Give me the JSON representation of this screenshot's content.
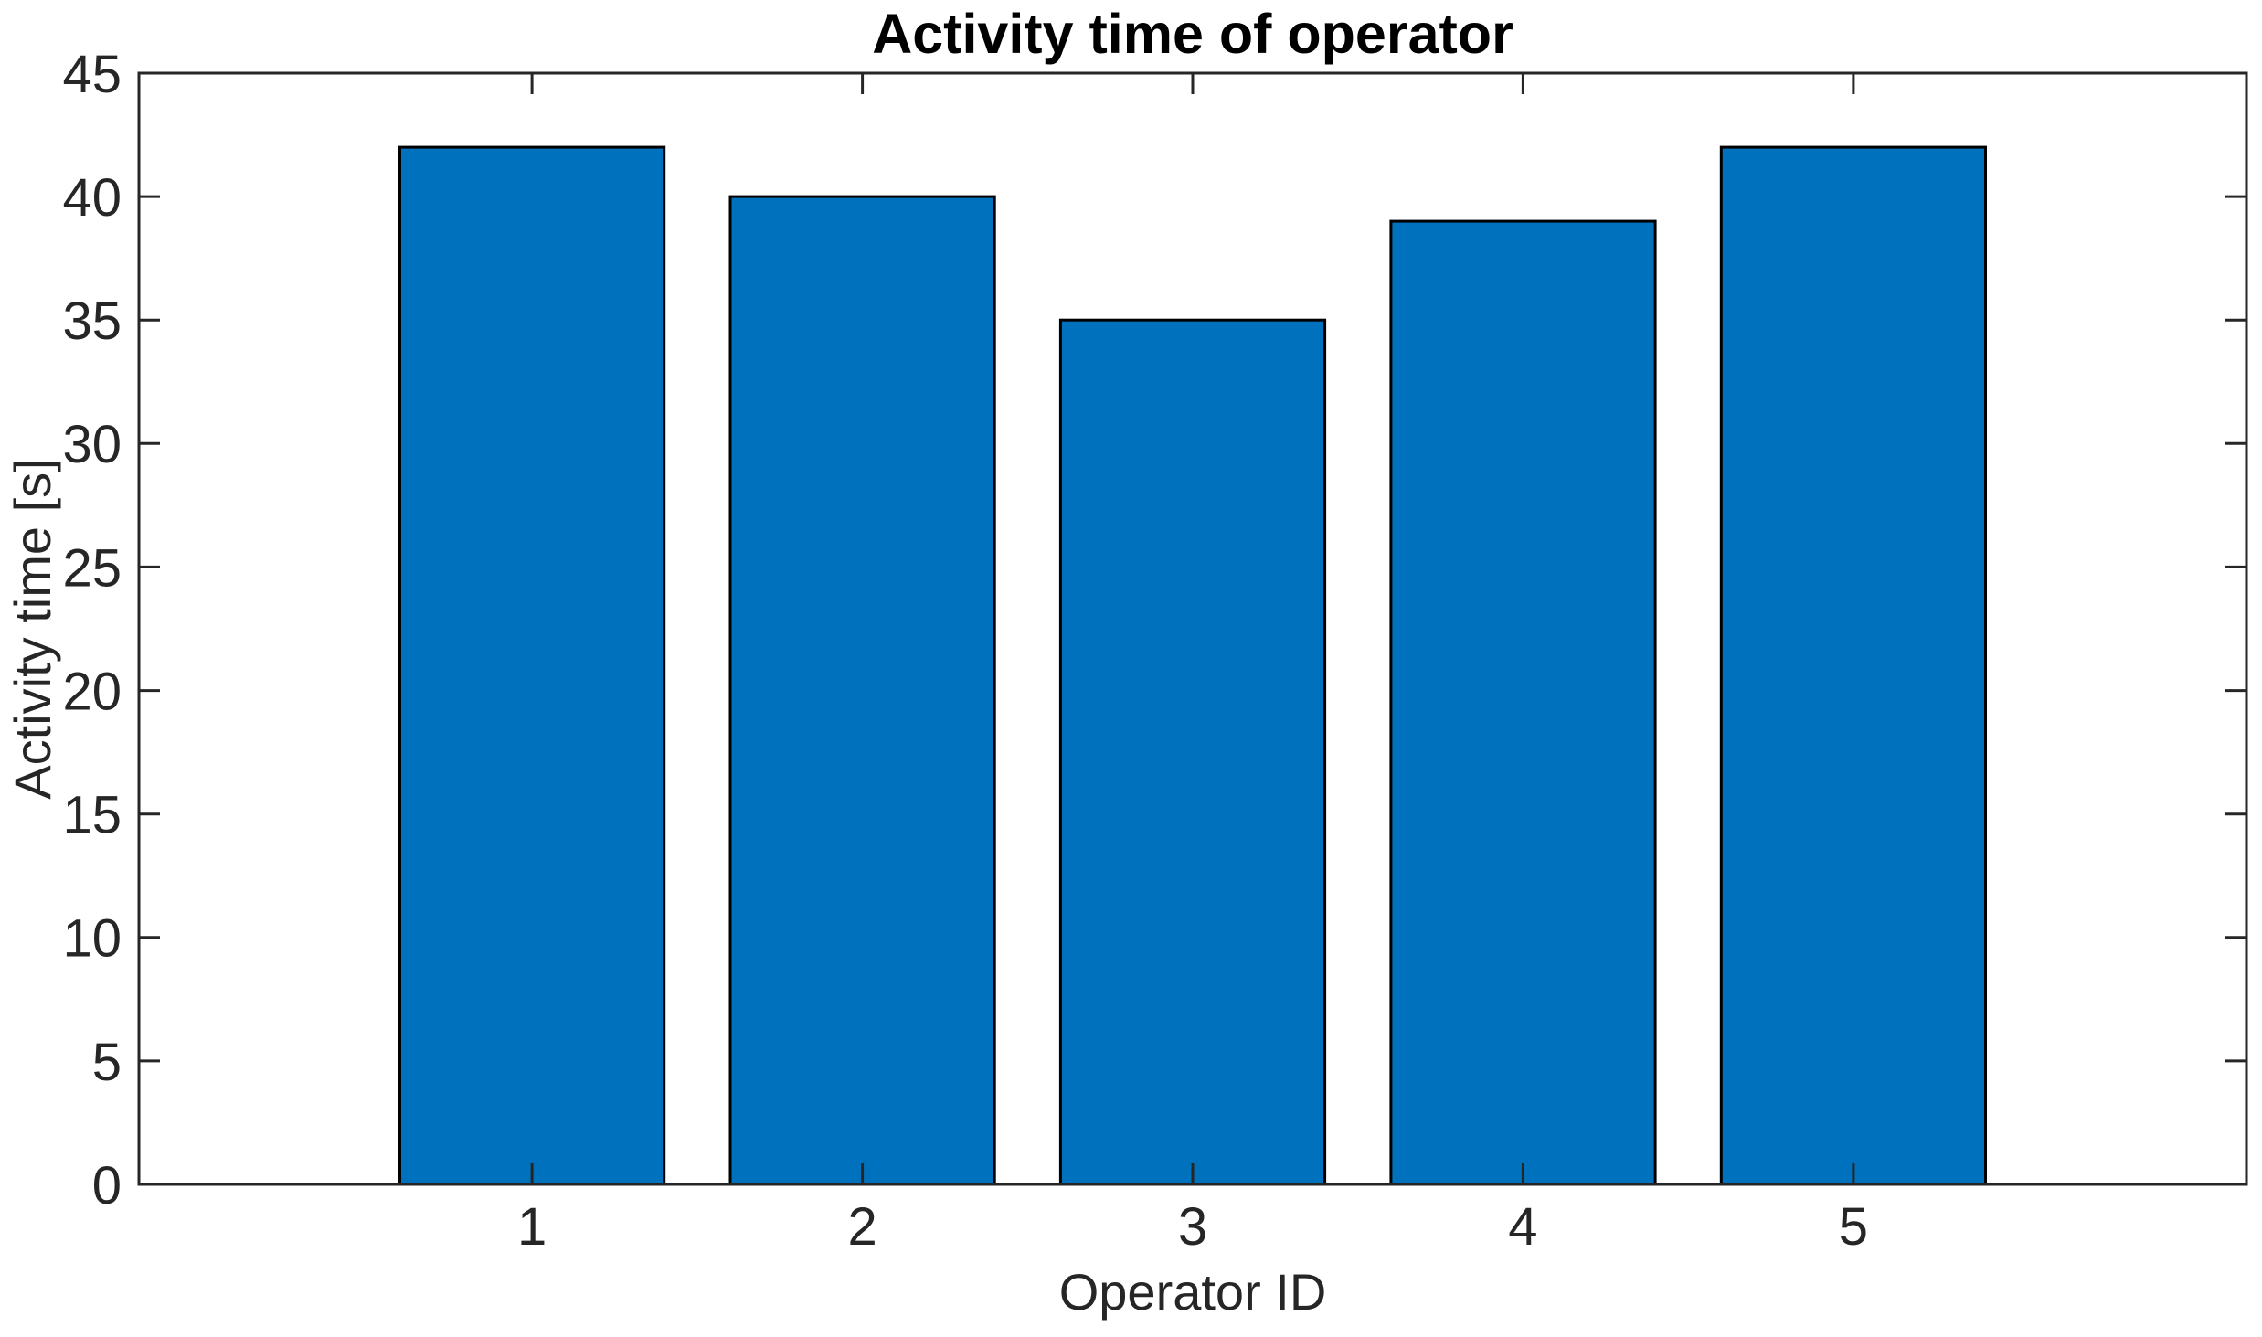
{
  "chart_data": {
    "type": "bar",
    "title": "Activity time of operator",
    "xlabel": "Operator ID",
    "ylabel": "Activity time [s]",
    "categories": [
      "1",
      "2",
      "3",
      "4",
      "5"
    ],
    "values": [
      42,
      40,
      35,
      39,
      42
    ],
    "series_name": "Activity time",
    "ylim": [
      0,
      45
    ],
    "yticks": [
      0,
      5,
      10,
      15,
      20,
      25,
      30,
      35,
      40,
      45
    ],
    "xlim": [
      -0.19,
      6.19
    ],
    "x_positions": [
      1,
      2,
      3,
      4,
      5
    ],
    "bar_width_data_units": 0.8,
    "grid": false,
    "legend": null,
    "box": true,
    "tick_direction": "in",
    "colors": {
      "bar_fill": "#0072BD",
      "bar_edge": "#000000",
      "axis": "#262626",
      "tick_label": "#262626",
      "title": "#000000",
      "background": "#ffffff"
    }
  }
}
